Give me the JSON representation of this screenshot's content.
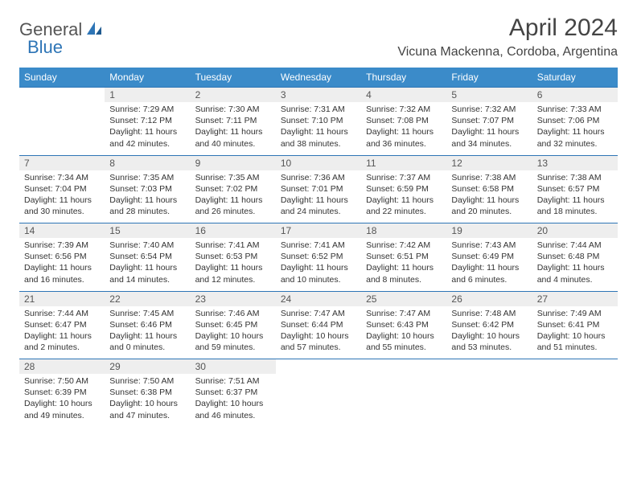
{
  "logo": {
    "text1": "General",
    "text2": "Blue"
  },
  "title": "April 2024",
  "location": "Vicuna Mackenna, Cordoba, Argentina",
  "colors": {
    "header_bg": "#3b8bc9",
    "header_text": "#ffffff",
    "border": "#2e75b6",
    "daynum_bg": "#eeeeee",
    "text": "#333333",
    "logo_gray": "#555555",
    "logo_blue": "#2e75b6"
  },
  "weekdays": [
    "Sunday",
    "Monday",
    "Tuesday",
    "Wednesday",
    "Thursday",
    "Friday",
    "Saturday"
  ],
  "weeks": [
    {
      "nums": [
        "",
        "1",
        "2",
        "3",
        "4",
        "5",
        "6"
      ],
      "cells": [
        null,
        {
          "sunrise": "7:29 AM",
          "sunset": "7:12 PM",
          "daylight": "11 hours and 42 minutes."
        },
        {
          "sunrise": "7:30 AM",
          "sunset": "7:11 PM",
          "daylight": "11 hours and 40 minutes."
        },
        {
          "sunrise": "7:31 AM",
          "sunset": "7:10 PM",
          "daylight": "11 hours and 38 minutes."
        },
        {
          "sunrise": "7:32 AM",
          "sunset": "7:08 PM",
          "daylight": "11 hours and 36 minutes."
        },
        {
          "sunrise": "7:32 AM",
          "sunset": "7:07 PM",
          "daylight": "11 hours and 34 minutes."
        },
        {
          "sunrise": "7:33 AM",
          "sunset": "7:06 PM",
          "daylight": "11 hours and 32 minutes."
        }
      ]
    },
    {
      "nums": [
        "7",
        "8",
        "9",
        "10",
        "11",
        "12",
        "13"
      ],
      "cells": [
        {
          "sunrise": "7:34 AM",
          "sunset": "7:04 PM",
          "daylight": "11 hours and 30 minutes."
        },
        {
          "sunrise": "7:35 AM",
          "sunset": "7:03 PM",
          "daylight": "11 hours and 28 minutes."
        },
        {
          "sunrise": "7:35 AM",
          "sunset": "7:02 PM",
          "daylight": "11 hours and 26 minutes."
        },
        {
          "sunrise": "7:36 AM",
          "sunset": "7:01 PM",
          "daylight": "11 hours and 24 minutes."
        },
        {
          "sunrise": "7:37 AM",
          "sunset": "6:59 PM",
          "daylight": "11 hours and 22 minutes."
        },
        {
          "sunrise": "7:38 AM",
          "sunset": "6:58 PM",
          "daylight": "11 hours and 20 minutes."
        },
        {
          "sunrise": "7:38 AM",
          "sunset": "6:57 PM",
          "daylight": "11 hours and 18 minutes."
        }
      ]
    },
    {
      "nums": [
        "14",
        "15",
        "16",
        "17",
        "18",
        "19",
        "20"
      ],
      "cells": [
        {
          "sunrise": "7:39 AM",
          "sunset": "6:56 PM",
          "daylight": "11 hours and 16 minutes."
        },
        {
          "sunrise": "7:40 AM",
          "sunset": "6:54 PM",
          "daylight": "11 hours and 14 minutes."
        },
        {
          "sunrise": "7:41 AM",
          "sunset": "6:53 PM",
          "daylight": "11 hours and 12 minutes."
        },
        {
          "sunrise": "7:41 AM",
          "sunset": "6:52 PM",
          "daylight": "11 hours and 10 minutes."
        },
        {
          "sunrise": "7:42 AM",
          "sunset": "6:51 PM",
          "daylight": "11 hours and 8 minutes."
        },
        {
          "sunrise": "7:43 AM",
          "sunset": "6:49 PM",
          "daylight": "11 hours and 6 minutes."
        },
        {
          "sunrise": "7:44 AM",
          "sunset": "6:48 PM",
          "daylight": "11 hours and 4 minutes."
        }
      ]
    },
    {
      "nums": [
        "21",
        "22",
        "23",
        "24",
        "25",
        "26",
        "27"
      ],
      "cells": [
        {
          "sunrise": "7:44 AM",
          "sunset": "6:47 PM",
          "daylight": "11 hours and 2 minutes."
        },
        {
          "sunrise": "7:45 AM",
          "sunset": "6:46 PM",
          "daylight": "11 hours and 0 minutes."
        },
        {
          "sunrise": "7:46 AM",
          "sunset": "6:45 PM",
          "daylight": "10 hours and 59 minutes."
        },
        {
          "sunrise": "7:47 AM",
          "sunset": "6:44 PM",
          "daylight": "10 hours and 57 minutes."
        },
        {
          "sunrise": "7:47 AM",
          "sunset": "6:43 PM",
          "daylight": "10 hours and 55 minutes."
        },
        {
          "sunrise": "7:48 AM",
          "sunset": "6:42 PM",
          "daylight": "10 hours and 53 minutes."
        },
        {
          "sunrise": "7:49 AM",
          "sunset": "6:41 PM",
          "daylight": "10 hours and 51 minutes."
        }
      ]
    },
    {
      "nums": [
        "28",
        "29",
        "30",
        "",
        "",
        "",
        ""
      ],
      "cells": [
        {
          "sunrise": "7:50 AM",
          "sunset": "6:39 PM",
          "daylight": "10 hours and 49 minutes."
        },
        {
          "sunrise": "7:50 AM",
          "sunset": "6:38 PM",
          "daylight": "10 hours and 47 minutes."
        },
        {
          "sunrise": "7:51 AM",
          "sunset": "6:37 PM",
          "daylight": "10 hours and 46 minutes."
        },
        null,
        null,
        null,
        null
      ]
    }
  ],
  "labels": {
    "sunrise": "Sunrise:",
    "sunset": "Sunset:",
    "daylight": "Daylight:"
  }
}
